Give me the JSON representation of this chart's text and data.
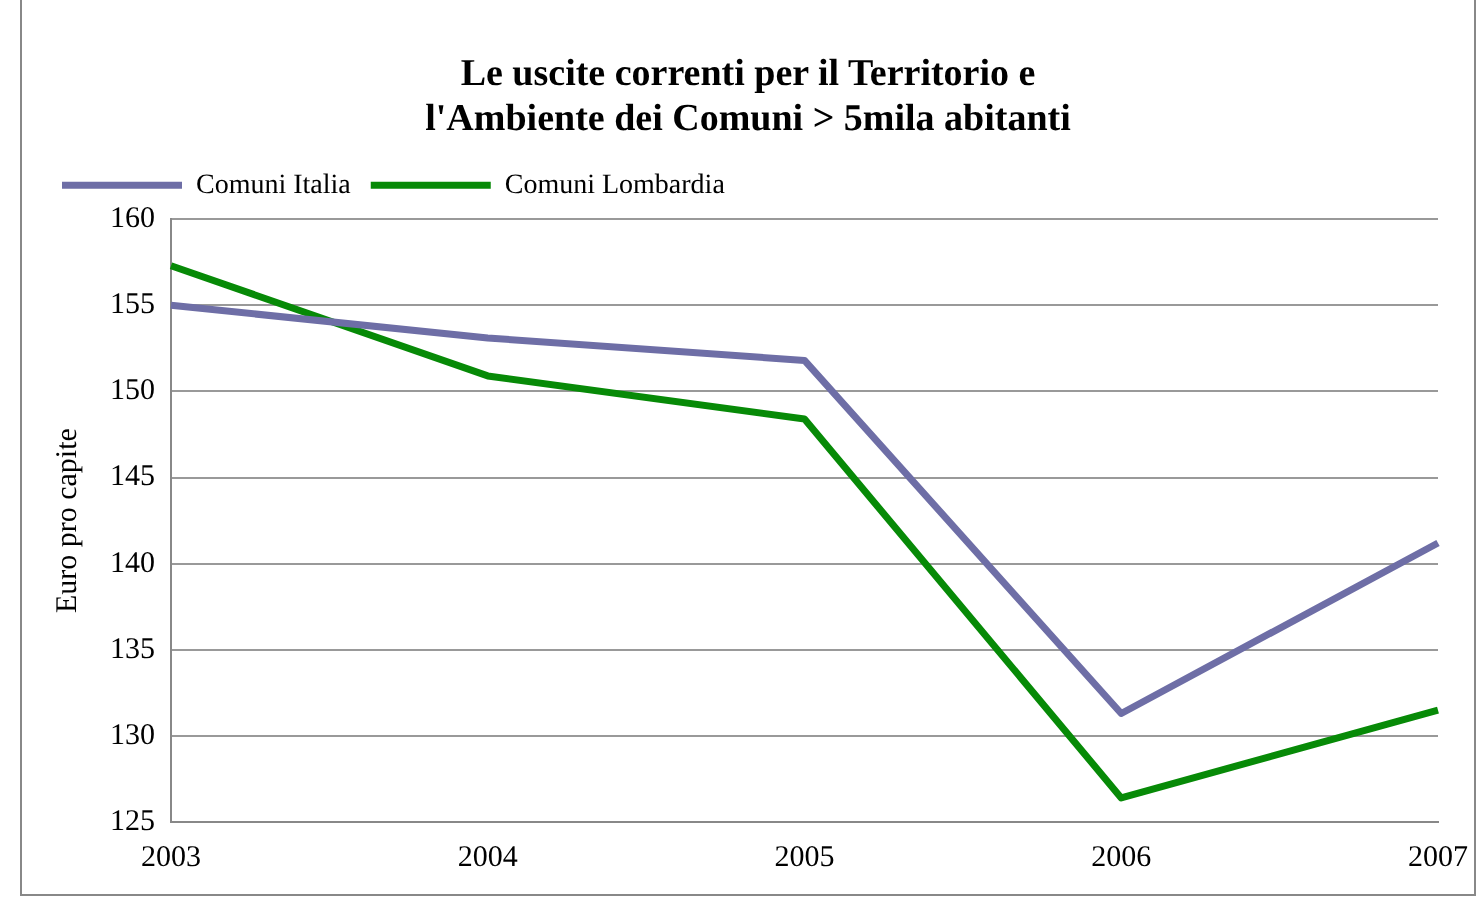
{
  "chart_data": {
    "type": "line",
    "title": "Le uscite correnti per il Territorio e l'Ambiente dei Comuni > 5mila abitanti",
    "ylabel": "Euro pro capite",
    "categories": [
      "2003",
      "2004",
      "2005",
      "2006",
      "2007"
    ],
    "series": [
      {
        "name": "Comuni Italia",
        "color": "#6e6ea6",
        "values": [
          155.0,
          153.1,
          151.8,
          131.3,
          141.2
        ]
      },
      {
        "name": "Comuni Lombardia",
        "color": "#078a07",
        "values": [
          157.3,
          150.9,
          148.4,
          126.4,
          131.5
        ]
      }
    ],
    "ylim": [
      125,
      160
    ],
    "yticks": [
      125,
      130,
      135,
      140,
      145,
      150,
      155,
      160
    ],
    "grid": "y",
    "legend": "top",
    "marker": "none",
    "line_style": "solid"
  }
}
